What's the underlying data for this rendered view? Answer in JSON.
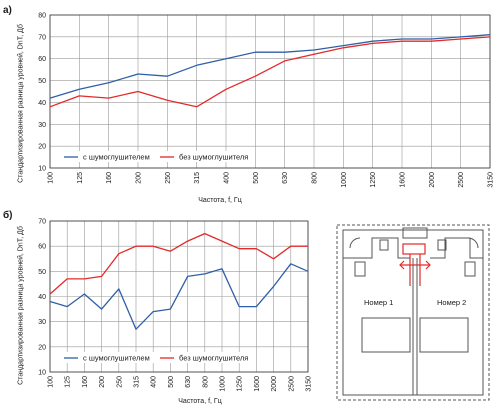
{
  "colors": {
    "with_silencer": "#2f5fa8",
    "without_silencer": "#e32a2a",
    "grid": "#9a9a9a",
    "axis": "#333333",
    "diagram_line": "#555555",
    "diagram_accent": "#e32a2a"
  },
  "chart_data": [
    {
      "type": "line",
      "panel_label": "а)",
      "xlabel": "Частота, f, Гц",
      "ylabel": "Стандартизированная разница уровней, DnT, Дб",
      "categories": [
        "100",
        "125",
        "160",
        "200",
        "250",
        "315",
        "400",
        "500",
        "630",
        "800",
        "1000",
        "1250",
        "1600",
        "2000",
        "2500",
        "3150"
      ],
      "yticks": [
        10,
        20,
        30,
        40,
        50,
        60,
        70,
        80
      ],
      "ylim": [
        10,
        80
      ],
      "grid": true,
      "legend_placement": "bottom-left",
      "series": [
        {
          "name": "с шумоглушителем",
          "color": "#2f5fa8",
          "values": [
            42,
            46,
            49,
            53,
            52,
            57,
            60,
            63,
            63,
            64,
            66,
            68,
            69,
            69,
            70,
            71
          ]
        },
        {
          "name": "без шумоглушителя",
          "color": "#e32a2a",
          "values": [
            38,
            43,
            42,
            45,
            41,
            38,
            46,
            52,
            59,
            62,
            65,
            67,
            68,
            68,
            69,
            70
          ]
        }
      ]
    },
    {
      "type": "line",
      "panel_label": "б)",
      "xlabel": "Частота, f, Гц",
      "ylabel": "Стандартизированная разница уровней, DnT, Дб",
      "categories": [
        "100",
        "125",
        "160",
        "200",
        "250",
        "315",
        "400",
        "500",
        "630",
        "800",
        "1000",
        "1250",
        "1600",
        "2000",
        "2500",
        "3150"
      ],
      "yticks": [
        10,
        20,
        30,
        40,
        50,
        60,
        70
      ],
      "ylim": [
        10,
        70
      ],
      "grid": true,
      "legend_placement": "bottom-left",
      "series": [
        {
          "name": "с шумоглушителем",
          "color": "#2f5fa8",
          "values": [
            38,
            36,
            41,
            35,
            43,
            27,
            34,
            35,
            48,
            49,
            51,
            36,
            36,
            44,
            53,
            50
          ]
        },
        {
          "name": "без шумоглушителя",
          "color": "#e32a2a",
          "values": [
            41,
            47,
            47,
            48,
            57,
            60,
            60,
            58,
            62,
            65,
            62,
            59,
            59,
            55,
            60,
            60
          ]
        }
      ]
    }
  ],
  "diagram": {
    "room1": "Номер 1",
    "room2": "Номер 2"
  }
}
